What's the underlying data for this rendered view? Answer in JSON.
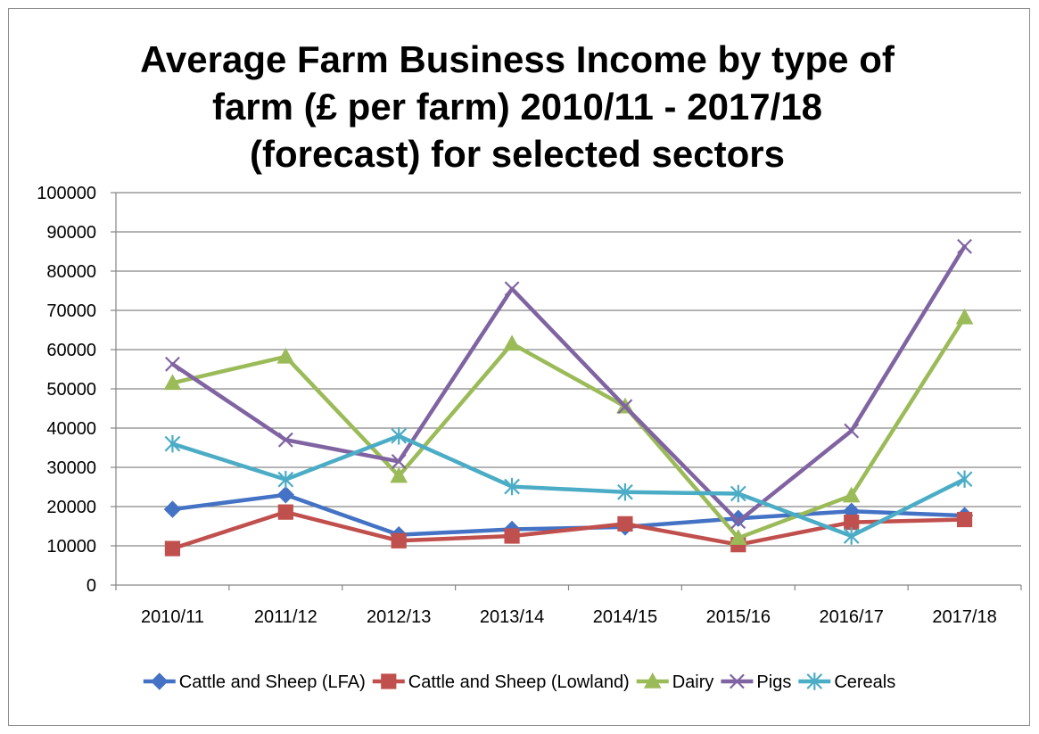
{
  "chart_data": {
    "type": "line",
    "title_lines": [
      "Average Farm Business Income by type of",
      "farm (£ per farm) 2010/11 - 2017/18",
      "(forecast) for selected sectors"
    ],
    "categories": [
      "2010/11",
      "2011/12",
      "2012/13",
      "2013/14",
      "2014/15",
      "2015/16",
      "2016/17",
      "2017/18"
    ],
    "ylim": [
      0,
      100000
    ],
    "yticks": [
      0,
      10000,
      20000,
      30000,
      40000,
      50000,
      60000,
      70000,
      80000,
      90000,
      100000
    ],
    "grid": true,
    "legend_position": "bottom",
    "series": [
      {
        "name": "Cattle and Sheep (LFA)",
        "color": "#4472C4",
        "marker": "diamond",
        "values": [
          19300,
          23000,
          12800,
          14200,
          14800,
          17000,
          18800,
          17700
        ]
      },
      {
        "name": "Cattle and Sheep (Lowland)",
        "color": "#C0504D",
        "marker": "square",
        "values": [
          9300,
          18600,
          11300,
          12500,
          15600,
          10300,
          16000,
          16700
        ]
      },
      {
        "name": "Dairy",
        "color": "#9BBB59",
        "marker": "triangle",
        "values": [
          51500,
          58200,
          27800,
          61500,
          45500,
          12000,
          22800,
          68200
        ]
      },
      {
        "name": "Pigs",
        "color": "#8064A2",
        "marker": "x",
        "values": [
          56300,
          37000,
          31500,
          75500,
          45500,
          16200,
          39300,
          86300
        ]
      },
      {
        "name": "Cereals",
        "color": "#4BACC6",
        "marker": "star",
        "values": [
          36000,
          26900,
          38000,
          25100,
          23700,
          23300,
          12500,
          27000
        ]
      }
    ]
  }
}
